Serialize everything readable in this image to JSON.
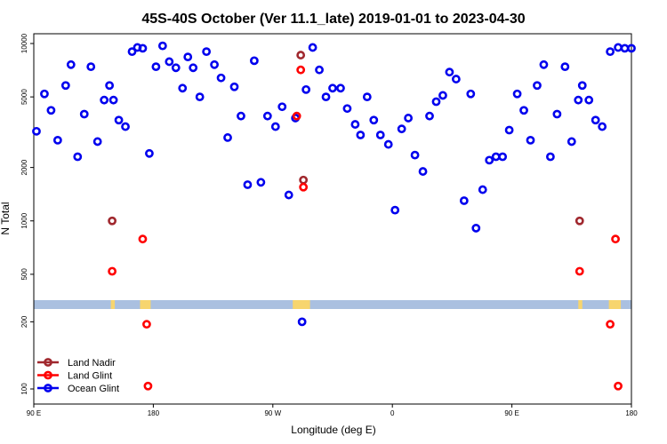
{
  "chart_data": {
    "type": "scatter",
    "title": "45S-40S October (Ver 11.1_late)   2019-01-01 to 2023-04-30",
    "xlabel": "Longitude (deg E)",
    "ylabel": "N Total",
    "x_ticks": [
      {
        "value": 90,
        "label": "90 E"
      },
      {
        "value": 180,
        "label": "180"
      },
      {
        "value": 270,
        "label": "90 W"
      },
      {
        "value": 360,
        "label": "0"
      },
      {
        "value": 450,
        "label": "90 E"
      },
      {
        "value": 540,
        "label": "180"
      }
    ],
    "xlim": [
      90,
      540
    ],
    "y_scale": "log",
    "ylim": [
      90,
      11000
    ],
    "y_ticks": [
      100,
      200,
      500,
      1000,
      2000,
      5000,
      10000
    ],
    "grid": false,
    "legend_position": "bottom-left",
    "series": [
      {
        "name": "Land Nadir",
        "color": "#a0282e",
        "x": [
          149,
          291,
          293,
          501
        ],
        "y": [
          1000,
          8600,
          1700,
          1000
        ]
      },
      {
        "name": "Land Glint",
        "color": "#ff0000",
        "x": [
          149,
          172,
          175,
          176,
          288,
          291,
          293,
          501,
          524,
          528,
          530
        ],
        "y": [
          520,
          790,
          195,
          103,
          3900,
          7100,
          1550,
          520,
          195,
          790,
          103
        ]
      },
      {
        "name": "Ocean Glint",
        "color": "#0000ee",
        "x": [
          92,
          98,
          103,
          108,
          114,
          118,
          123,
          128,
          133,
          138,
          143,
          147,
          150,
          154,
          159,
          164,
          168,
          172,
          177,
          182,
          187,
          192,
          197,
          202,
          206,
          210,
          215,
          220,
          226,
          231,
          236,
          241,
          246,
          251,
          256,
          261,
          266,
          272,
          277,
          282,
          287,
          292,
          295,
          300,
          305,
          310,
          315,
          321,
          326,
          332,
          336,
          341,
          346,
          351,
          357,
          362,
          367,
          372,
          377,
          383,
          388,
          393,
          398,
          403,
          408,
          414,
          419,
          423,
          428,
          433,
          438,
          443,
          448,
          454,
          459,
          464,
          469,
          474,
          479,
          484,
          490,
          495,
          500,
          503,
          508,
          513,
          518,
          524,
          530,
          535,
          540
        ],
        "y": [
          3200,
          5200,
          4200,
          2850,
          5800,
          7600,
          2300,
          4000,
          7400,
          2800,
          4800,
          5800,
          4800,
          3700,
          3400,
          9000,
          9500,
          9400,
          2400,
          7400,
          9700,
          7900,
          7300,
          5600,
          8400,
          7300,
          5000,
          9000,
          7600,
          6400,
          2950,
          5700,
          3900,
          1600,
          8000,
          1650,
          3900,
          3400,
          4400,
          1400,
          3800,
          200,
          5500,
          9500,
          7100,
          5000,
          5600,
          5600,
          4300,
          3500,
          3050,
          5000,
          3700,
          3050,
          2700,
          1150,
          3300,
          3800,
          2350,
          1900,
          3900,
          4700,
          5100,
          6900,
          6300,
          1300,
          5200,
          910,
          1500,
          2200,
          2300,
          2300,
          3250,
          5200,
          4200,
          2850,
          5800,
          7600,
          2300,
          4000,
          7400,
          2800,
          4800,
          5800,
          4800,
          3700,
          3400,
          9000,
          9500,
          9400,
          9400
        ]
      }
    ],
    "coastline_band_color": "#aac0e0",
    "land_highlight_color": "#f7d56e"
  }
}
